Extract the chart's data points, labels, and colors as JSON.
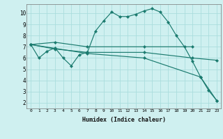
{
  "xlabel": "Humidex (Indice chaleur)",
  "background_color": "#cff0f0",
  "grid_color": "#aadddd",
  "line_color": "#1a7a6e",
  "xlim": [
    -0.5,
    23.5
  ],
  "ylim": [
    1.5,
    10.8
  ],
  "yticks": [
    2,
    3,
    4,
    5,
    6,
    7,
    8,
    9,
    10
  ],
  "xticks": [
    0,
    1,
    2,
    3,
    4,
    5,
    6,
    7,
    8,
    9,
    10,
    11,
    12,
    13,
    14,
    15,
    16,
    17,
    18,
    19,
    20,
    21,
    22,
    23
  ],
  "series": [
    {
      "x": [
        0,
        1,
        2,
        3,
        4,
        5,
        6,
        7,
        8,
        9,
        10,
        11,
        12,
        13,
        14,
        15,
        16,
        17,
        18,
        19,
        20,
        21,
        22,
        23
      ],
      "y": [
        7.2,
        6.0,
        6.6,
        6.9,
        6.0,
        5.3,
        6.3,
        6.5,
        8.4,
        9.3,
        10.1,
        9.7,
        9.7,
        9.9,
        10.2,
        10.4,
        10.1,
        9.2,
        8.0,
        7.0,
        5.7,
        4.3,
        3.1,
        2.2
      ]
    },
    {
      "x": [
        0,
        3,
        7,
        14,
        20
      ],
      "y": [
        7.2,
        7.4,
        7.0,
        7.0,
        7.0
      ]
    },
    {
      "x": [
        0,
        3,
        7,
        14,
        20,
        23
      ],
      "y": [
        7.2,
        6.8,
        6.5,
        6.5,
        6.0,
        5.8
      ]
    },
    {
      "x": [
        0,
        7,
        14,
        21,
        23
      ],
      "y": [
        7.2,
        6.4,
        6.0,
        4.3,
        2.2
      ]
    }
  ]
}
